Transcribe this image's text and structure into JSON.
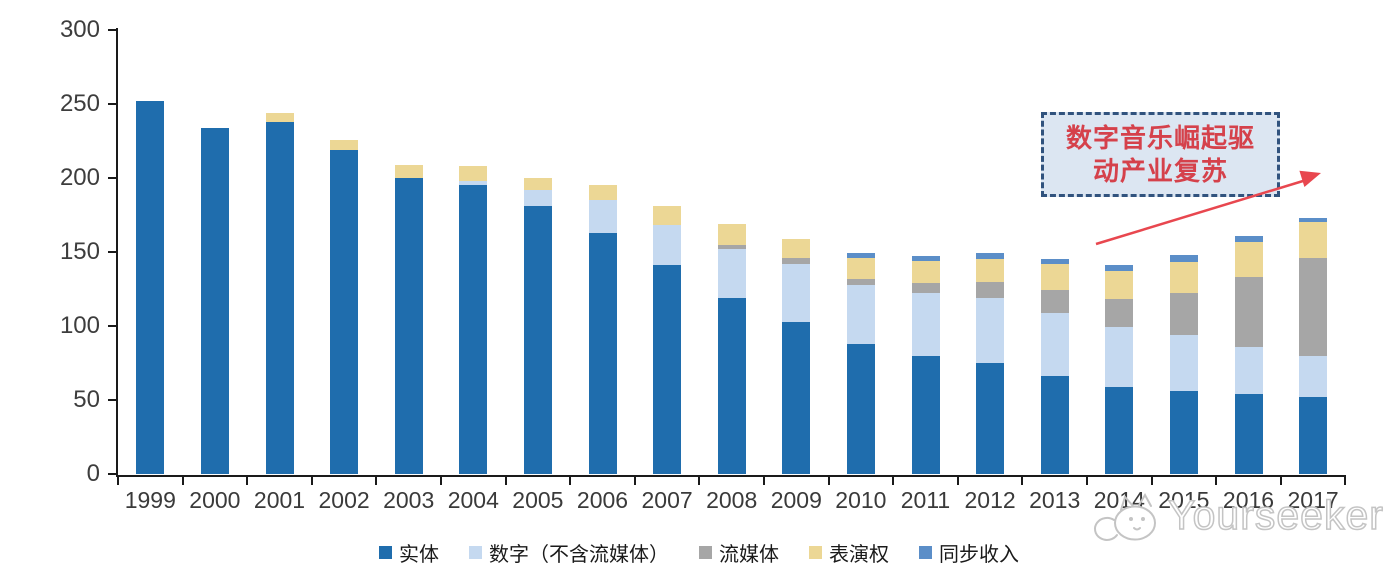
{
  "chart_data": {
    "type": "bar",
    "stacked": true,
    "title": "",
    "xlabel": "",
    "ylabel": "",
    "categories": [
      "1999",
      "2000",
      "2001",
      "2002",
      "2003",
      "2004",
      "2005",
      "2006",
      "2007",
      "2008",
      "2009",
      "2010",
      "2011",
      "2012",
      "2013",
      "2014",
      "2015",
      "2016",
      "2017"
    ],
    "series": [
      {
        "key": "physical",
        "name": "实体",
        "color": "#1f6dad",
        "values": [
          252,
          234,
          238,
          219,
          200,
          195,
          181,
          163,
          141,
          119,
          103,
          88,
          80,
          75,
          66,
          59,
          56,
          54,
          52
        ]
      },
      {
        "key": "digital-excl-streaming",
        "name": "数字（不含流媒体）",
        "color": "#c5d9f0",
        "values": [
          0,
          0,
          0,
          0,
          0,
          3,
          11,
          22,
          27,
          33,
          39,
          40,
          42,
          44,
          43,
          40,
          38,
          32,
          28
        ]
      },
      {
        "key": "streaming",
        "name": "流媒体",
        "color": "#a6a6a6",
        "values": [
          0,
          0,
          0,
          0,
          0,
          0,
          0,
          0,
          0,
          3,
          4,
          4,
          7,
          11,
          15,
          19,
          28,
          47,
          66
        ]
      },
      {
        "key": "performance-rights",
        "name": "表演权",
        "color": "#ecd795",
        "values": [
          0,
          0,
          6,
          7,
          9,
          10,
          8,
          10,
          13,
          14,
          13,
          14,
          15,
          15,
          18,
          19,
          21,
          24,
          24
        ]
      },
      {
        "key": "sync",
        "name": "同步收入",
        "color": "#5b8ec8",
        "values": [
          0,
          0,
          0,
          0,
          0,
          0,
          0,
          0,
          0,
          0,
          0,
          3,
          3,
          4,
          3,
          4,
          5,
          4,
          3
        ]
      }
    ],
    "ylim": [
      0,
      300
    ],
    "yticks": [
      0,
      50,
      100,
      150,
      200,
      250,
      300
    ],
    "grid": false,
    "legend_position": "bottom"
  },
  "annotation": {
    "line1": "数字音乐崛起驱",
    "line2": "动产业复苏",
    "text_color": "#d5414b",
    "box_fill": "#dce6f2",
    "box_border": "#31537e",
    "arrow_color": "#e8474f"
  },
  "watermark": {
    "text": "Yourseeker",
    "logo": "cat-doodle-icon",
    "color": "#c4c4c4"
  }
}
